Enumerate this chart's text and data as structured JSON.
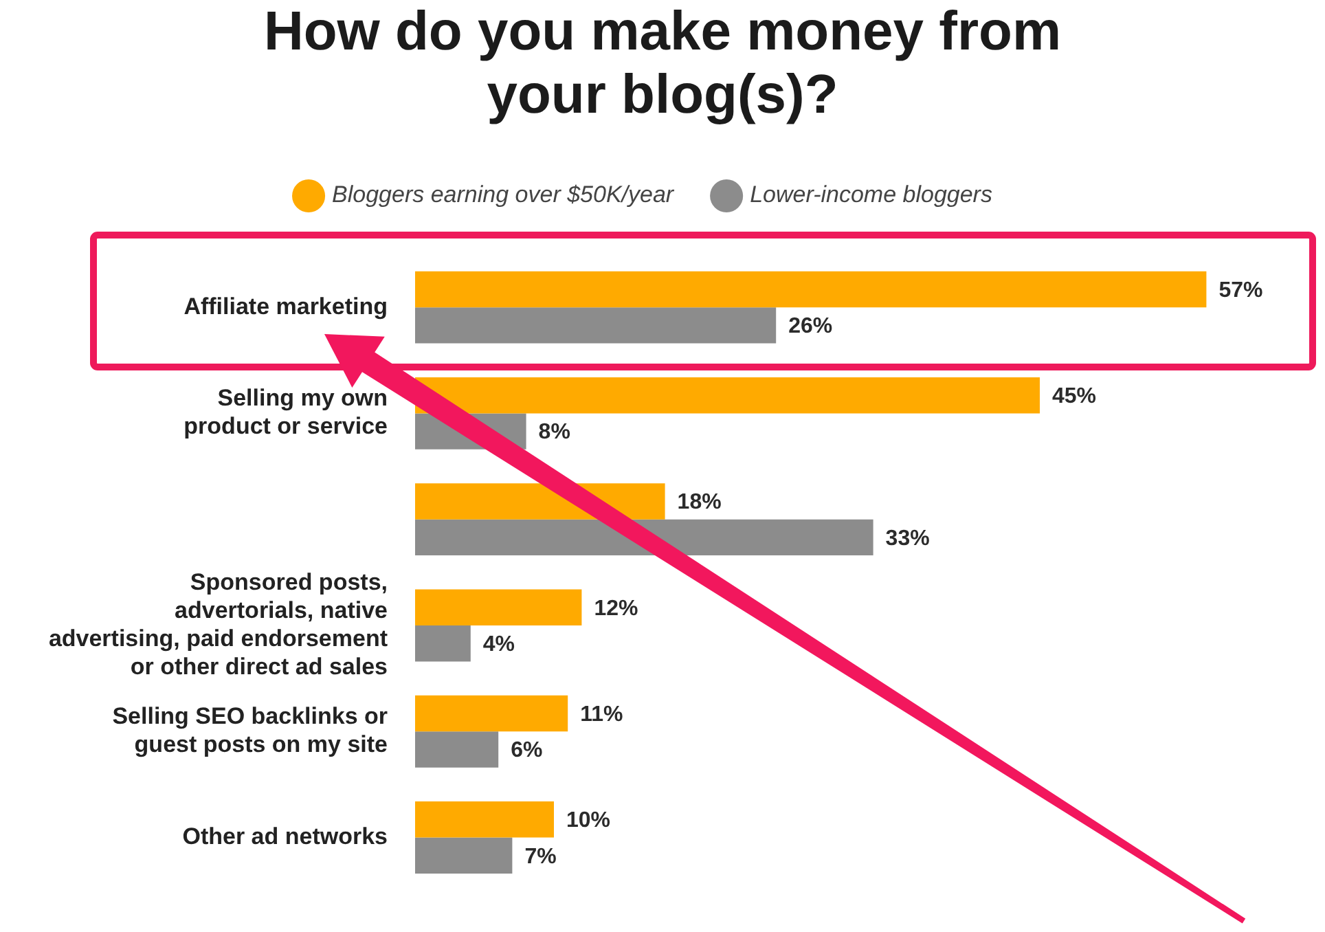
{
  "chart_data": {
    "type": "bar",
    "orientation": "horizontal",
    "title": "How do you make money from your blog(s)?",
    "categories": [
      "Affiliate marketing",
      "Selling my own product or service",
      null,
      "Sponsored posts, advertorials, native advertising, paid endorsement or other direct ad sales",
      "Selling SEO backlinks or guest posts on my site",
      "Other ad networks"
    ],
    "series": [
      {
        "name": "Bloggers earning over $50K/year",
        "color": "#ffaa00",
        "values": [
          57,
          45,
          18,
          12,
          11,
          10
        ],
        "value_labels": [
          "57%",
          "45%",
          "18%",
          "12%",
          "11%",
          "10%"
        ]
      },
      {
        "name": "Lower-income bloggers",
        "color": "#8c8c8c",
        "values": [
          26,
          8,
          33,
          4,
          6,
          7
        ],
        "value_labels": [
          "26%",
          "8%",
          "33%",
          "4%",
          "6%",
          "7%"
        ]
      }
    ],
    "legend": "top",
    "grid": false,
    "tick_labels": "y"
  }
}
